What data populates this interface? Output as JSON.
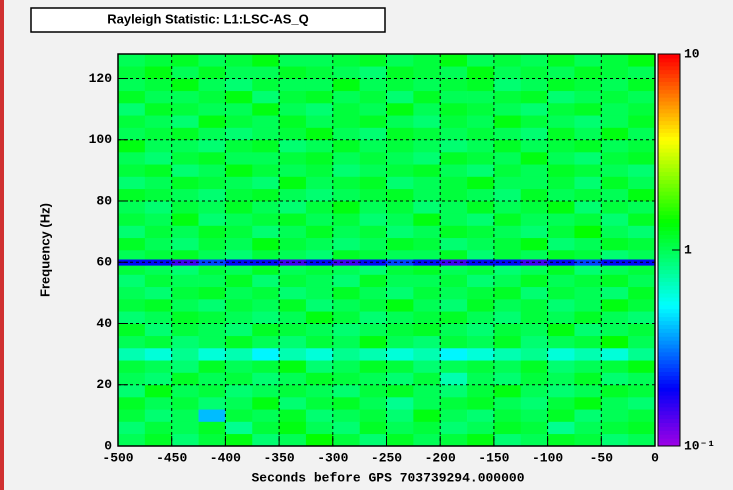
{
  "chart_data": {
    "type": "heatmap",
    "title": "Rayleigh Statistic: L1:LSC-AS_Q",
    "x_label": "Seconds before GPS 703739294.000000",
    "y_label": "Frequency (Hz)",
    "xbins": [
      -500,
      -475,
      -450,
      -425,
      -400,
      -375,
      -350,
      -325,
      -300,
      -275,
      -250,
      -225,
      -200,
      -175,
      -150,
      -125,
      -100,
      -75,
      -50,
      -25,
      0
    ],
    "ybins": [
      0,
      4,
      8,
      12,
      16,
      20,
      24,
      28,
      32,
      36,
      40,
      44,
      48,
      52,
      56,
      59,
      61,
      64,
      68,
      72,
      76,
      80,
      84,
      88,
      92,
      96,
      100,
      104,
      108,
      112,
      116,
      120,
      124,
      128
    ],
    "z": [
      [
        1.0,
        1.2,
        0.9,
        1.1,
        1.3,
        0.9,
        1.0,
        1.4,
        1.1,
        0.9,
        1.2,
        1.0,
        1.1,
        1.3,
        0.9,
        1.0,
        1.2,
        1.1,
        0.9,
        1.0
      ],
      [
        0.9,
        1.1,
        1.0,
        1.2,
        0.8,
        1.1,
        1.3,
        1.0,
        0.9,
        1.2,
        1.0,
        1.1,
        0.9,
        1.0,
        1.2,
        1.1,
        0.8,
        1.0,
        1.1,
        1.2
      ],
      [
        1.1,
        0.9,
        1.0,
        0.4,
        1.1,
        1.0,
        1.2,
        0.9,
        1.0,
        1.1,
        0.9,
        1.3,
        1.0,
        0.9,
        1.1,
        1.0,
        1.2,
        0.9,
        1.0,
        1.1
      ],
      [
        1.2,
        1.0,
        1.1,
        0.9,
        1.0,
        1.3,
        0.9,
        1.1,
        1.2,
        1.0,
        0.8,
        1.0,
        1.1,
        1.2,
        1.0,
        0.9,
        1.1,
        1.3,
        1.0,
        0.9
      ],
      [
        0.9,
        1.3,
        1.0,
        1.1,
        0.9,
        1.0,
        1.1,
        1.0,
        0.9,
        1.1,
        1.2,
        1.0,
        0.9,
        1.1,
        1.3,
        1.0,
        0.9,
        1.0,
        1.2,
        1.1
      ],
      [
        1.0,
        0.9,
        1.2,
        1.0,
        1.1,
        0.9,
        1.0,
        1.2,
        1.1,
        1.0,
        0.9,
        1.1,
        0.7,
        1.0,
        0.9,
        1.1,
        1.0,
        1.2,
        0.9,
        1.0
      ],
      [
        1.1,
        1.0,
        0.9,
        1.2,
        1.0,
        1.1,
        1.3,
        0.9,
        1.0,
        1.2,
        1.1,
        0.9,
        1.0,
        1.1,
        1.0,
        1.2,
        0.9,
        1.0,
        1.1,
        1.3
      ],
      [
        0.7,
        0.6,
        0.8,
        0.6,
        0.7,
        0.5,
        0.7,
        0.6,
        0.8,
        0.7,
        0.6,
        0.7,
        0.5,
        0.6,
        0.7,
        0.8,
        0.6,
        0.7,
        0.6,
        0.8
      ],
      [
        1.0,
        1.1,
        0.9,
        1.0,
        1.2,
        1.0,
        0.9,
        1.1,
        1.0,
        1.3,
        1.0,
        0.9,
        1.1,
        1.0,
        1.2,
        0.9,
        1.0,
        1.1,
        1.4,
        1.0
      ],
      [
        1.2,
        0.9,
        1.1,
        1.0,
        0.9,
        1.2,
        1.1,
        1.0,
        0.9,
        1.0,
        1.1,
        1.2,
        1.0,
        0.9,
        1.1,
        1.0,
        1.3,
        0.9,
        1.0,
        1.1
      ],
      [
        0.9,
        1.0,
        1.2,
        1.1,
        1.0,
        0.9,
        1.0,
        1.3,
        1.1,
        0.9,
        1.0,
        1.1,
        1.2,
        1.0,
        0.9,
        1.1,
        1.0,
        1.2,
        1.0,
        0.9
      ],
      [
        1.1,
        1.2,
        1.0,
        0.9,
        1.1,
        1.0,
        1.2,
        0.9,
        1.0,
        1.1,
        1.3,
        1.0,
        0.9,
        1.2,
        1.0,
        1.1,
        0.9,
        1.0,
        1.3,
        1.1
      ],
      [
        1.0,
        0.9,
        1.1,
        1.2,
        1.0,
        1.1,
        0.9,
        1.0,
        1.2,
        1.0,
        0.9,
        1.1,
        1.0,
        1.1,
        1.2,
        0.9,
        1.1,
        1.0,
        0.9,
        1.2
      ],
      [
        0.9,
        1.1,
        1.0,
        1.0,
        1.2,
        0.9,
        1.1,
        1.0,
        0.9,
        1.2,
        1.0,
        1.0,
        1.1,
        0.9,
        1.0,
        1.2,
        1.0,
        1.1,
        1.2,
        1.0
      ],
      [
        1.1,
        1.0,
        0.9,
        1.1,
        1.0,
        1.2,
        1.0,
        1.1,
        1.0,
        0.9,
        1.1,
        1.2,
        1.0,
        1.1,
        0.9,
        1.0,
        1.2,
        0.9,
        1.0,
        1.1
      ],
      [
        0.2,
        0.2,
        0.15,
        0.25,
        0.2,
        0.2,
        0.15,
        0.2,
        0.15,
        0.2,
        0.25,
        0.2,
        0.15,
        0.2,
        0.2,
        0.15,
        0.2,
        0.25,
        0.2,
        0.2
      ],
      [
        1.0,
        1.1,
        1.2,
        1.0,
        0.9,
        1.1,
        1.0,
        0.9,
        1.2,
        1.1,
        1.0,
        1.0,
        1.2,
        0.9,
        1.1,
        1.0,
        1.2,
        1.1,
        0.9,
        1.0
      ],
      [
        1.2,
        1.0,
        0.9,
        1.1,
        1.0,
        1.3,
        1.1,
        1.0,
        0.9,
        1.0,
        1.2,
        1.1,
        0.9,
        1.0,
        1.1,
        1.3,
        0.9,
        1.0,
        1.2,
        1.1
      ],
      [
        0.9,
        1.1,
        1.0,
        1.2,
        1.1,
        0.9,
        1.0,
        1.2,
        1.0,
        1.1,
        0.9,
        1.0,
        1.2,
        1.1,
        1.0,
        0.9,
        1.1,
        1.4,
        1.0,
        0.9
      ],
      [
        1.1,
        1.0,
        1.3,
        0.9,
        1.0,
        1.1,
        1.2,
        1.0,
        1.1,
        0.9,
        1.0,
        1.3,
        1.0,
        0.9,
        1.2,
        1.0,
        1.0,
        1.1,
        0.9,
        1.2
      ],
      [
        1.0,
        0.9,
        1.1,
        1.0,
        1.2,
        1.0,
        0.9,
        1.1,
        1.3,
        1.0,
        1.1,
        0.9,
        1.0,
        1.2,
        1.0,
        1.1,
        1.3,
        0.9,
        1.1,
        1.0
      ],
      [
        1.2,
        1.1,
        1.0,
        0.9,
        1.1,
        1.2,
        1.0,
        0.9,
        1.0,
        1.1,
        1.2,
        1.0,
        1.1,
        1.0,
        0.9,
        1.2,
        1.0,
        1.1,
        1.0,
        1.3
      ],
      [
        0.9,
        1.0,
        1.2,
        1.1,
        1.0,
        0.9,
        1.3,
        1.0,
        1.1,
        1.2,
        0.9,
        1.0,
        1.1,
        1.3,
        1.0,
        1.0,
        1.1,
        0.9,
        1.2,
        1.0
      ],
      [
        1.1,
        1.2,
        0.9,
        1.0,
        1.3,
        1.1,
        1.0,
        1.1,
        0.9,
        1.0,
        1.1,
        1.2,
        1.0,
        0.9,
        1.1,
        1.0,
        1.2,
        1.1,
        1.0,
        0.9
      ],
      [
        1.0,
        0.9,
        1.1,
        1.2,
        1.0,
        1.0,
        1.1,
        1.2,
        1.0,
        1.1,
        1.0,
        0.9,
        1.2,
        1.1,
        1.0,
        1.3,
        1.0,
        0.9,
        1.1,
        1.2
      ],
      [
        1.3,
        1.0,
        1.0,
        0.9,
        1.1,
        1.2,
        0.9,
        1.0,
        1.2,
        1.0,
        1.1,
        1.0,
        0.9,
        1.0,
        1.2,
        1.0,
        1.1,
        1.2,
        1.0,
        1.1
      ],
      [
        1.0,
        1.1,
        1.2,
        1.0,
        0.9,
        1.0,
        1.1,
        1.3,
        1.0,
        0.9,
        1.2,
        1.1,
        1.0,
        1.1,
        1.0,
        0.9,
        1.2,
        1.0,
        1.3,
        1.0
      ],
      [
        1.1,
        1.0,
        0.9,
        1.3,
        1.1,
        1.0,
        1.2,
        1.0,
        1.1,
        1.2,
        1.0,
        0.9,
        1.1,
        1.0,
        1.3,
        1.1,
        1.0,
        0.9,
        1.0,
        1.2
      ],
      [
        0.9,
        1.2,
        1.1,
        1.0,
        1.0,
        1.3,
        1.0,
        0.9,
        1.1,
        1.0,
        1.3,
        1.0,
        1.2,
        1.1,
        1.0,
        0.9,
        1.1,
        1.2,
        1.0,
        1.1
      ],
      [
        1.2,
        1.0,
        1.0,
        1.1,
        1.3,
        0.9,
        1.1,
        1.2,
        1.0,
        1.1,
        0.9,
        1.2,
        1.0,
        1.0,
        1.1,
        1.2,
        0.9,
        1.0,
        1.1,
        1.0
      ],
      [
        1.0,
        1.1,
        1.3,
        1.0,
        0.9,
        1.1,
        1.0,
        1.0,
        1.3,
        1.0,
        1.1,
        1.0,
        1.1,
        1.2,
        0.9,
        1.0,
        1.2,
        1.1,
        1.0,
        1.2
      ],
      [
        1.1,
        1.3,
        1.0,
        1.2,
        1.0,
        1.0,
        1.2,
        1.1,
        1.0,
        0.9,
        1.2,
        1.1,
        1.0,
        1.3,
        1.0,
        1.1,
        1.0,
        1.2,
        1.1,
        1.0
      ],
      [
        1.0,
        1.1,
        1.2,
        1.0,
        1.1,
        1.3,
        1.0,
        1.0,
        1.1,
        1.2,
        1.0,
        1.1,
        1.3,
        1.0,
        1.1,
        1.0,
        1.2,
        1.0,
        1.1,
        1.3
      ]
    ],
    "xlim": [
      -500,
      0
    ],
    "xticks": [
      -500,
      -450,
      -400,
      -350,
      -300,
      -250,
      -200,
      -150,
      -100,
      -50,
      0
    ],
    "ylim": [
      0,
      128
    ],
    "yticks": [
      0,
      20,
      40,
      60,
      80,
      100,
      120
    ],
    "zlim": [
      0.1,
      10
    ],
    "zticks": [
      {
        "value": 0.1,
        "label": "10⁻¹"
      },
      1,
      10
    ],
    "zlog": true,
    "colormap": "rainbow",
    "grid": true
  }
}
